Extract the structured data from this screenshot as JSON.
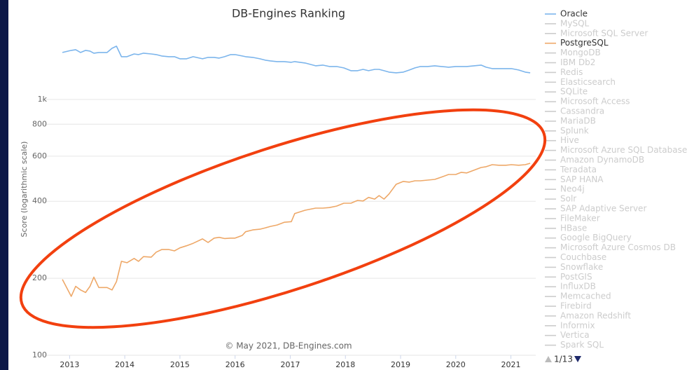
{
  "chart_data": {
    "type": "line",
    "title": "DB-Engines Ranking",
    "ylabel": "Score (logarithmic scale)",
    "credits": "© May 2021, DB-Engines.com",
    "ylog": true,
    "grid": true,
    "legend_position": "right",
    "legend_page": "1/13",
    "xlim": [
      2012.5,
      2021.45
    ],
    "xticks": [
      2013,
      2014,
      2015,
      2016,
      2017,
      2018,
      2019,
      2020,
      2021
    ],
    "ylim": [
      100,
      2000
    ],
    "yticks": [
      100,
      200,
      400,
      600,
      800,
      {
        "value": 1000,
        "label": "1k"
      }
    ],
    "x": [
      2012.87,
      2013.03,
      2013.11,
      2013.2,
      2013.29,
      2013.37,
      2013.44,
      2013.53,
      2013.68,
      2013.77,
      2013.85,
      2013.94,
      2014.04,
      2014.17,
      2014.25,
      2014.34,
      2014.48,
      2014.57,
      2014.67,
      2014.8,
      2014.9,
      2015.0,
      2015.12,
      2015.24,
      2015.41,
      2015.51,
      2015.62,
      2015.71,
      2015.81,
      2015.92,
      2016.0,
      2016.13,
      2016.19,
      2016.32,
      2016.45,
      2016.55,
      2016.64,
      2016.76,
      2016.89,
      2017.02,
      2017.08,
      2017.27,
      2017.46,
      2017.59,
      2017.71,
      2017.84,
      2017.97,
      2018.1,
      2018.22,
      2018.32,
      2018.42,
      2018.53,
      2018.61,
      2018.7,
      2018.79,
      2018.92,
      2019.05,
      2019.16,
      2019.26,
      2019.36,
      2019.49,
      2019.62,
      2019.74,
      2019.87,
      2020.0,
      2020.1,
      2020.2,
      2020.33,
      2020.46,
      2020.55,
      2020.66,
      2020.78,
      2020.91,
      2021.01,
      2021.14,
      2021.26,
      2021.35
    ],
    "series": [
      {
        "name": "Oracle",
        "color": "#7cb5ec",
        "values": [
          1526,
          1555,
          1565,
          1526,
          1555,
          1545,
          1516,
          1526,
          1526,
          1585,
          1615,
          1469,
          1469,
          1506,
          1497,
          1516,
          1506,
          1497,
          1479,
          1469,
          1469,
          1442,
          1442,
          1469,
          1442,
          1460,
          1460,
          1451,
          1469,
          1497,
          1497,
          1479,
          1469,
          1460,
          1442,
          1424,
          1415,
          1406,
          1406,
          1397,
          1406,
          1388,
          1354,
          1362,
          1345,
          1345,
          1328,
          1295,
          1295,
          1311,
          1295,
          1311,
          1311,
          1295,
          1279,
          1271,
          1279,
          1303,
          1328,
          1345,
          1345,
          1354,
          1345,
          1337,
          1345,
          1345,
          1345,
          1354,
          1362,
          1337,
          1320,
          1320,
          1320,
          1320,
          1303,
          1279,
          1271
        ]
      },
      {
        "name": "PostgreSQL",
        "color": "#eea868",
        "values": [
          198,
          170,
          186,
          180,
          176,
          186,
          202,
          184,
          184,
          180,
          194,
          233,
          230,
          239,
          233,
          243,
          242,
          253,
          259,
          259,
          256,
          263,
          268,
          274,
          285,
          276,
          287,
          289,
          286,
          287,
          287,
          294,
          304,
          309,
          311,
          315,
          319,
          323,
          331,
          333,
          358,
          369,
          376,
          376,
          378,
          383,
          393,
          393,
          403,
          401,
          414,
          408,
          421,
          408,
          427,
          466,
          478,
          475,
          481,
          481,
          484,
          487,
          497,
          509,
          509,
          519,
          516,
          529,
          542,
          546,
          556,
          553,
          553,
          556,
          553,
          556,
          563
        ]
      }
    ],
    "legend_inactive": [
      "MySQL",
      "Microsoft SQL Server",
      "MongoDB",
      "IBM Db2",
      "Redis",
      "Elasticsearch",
      "SQLite",
      "Microsoft Access",
      "Cassandra",
      "MariaDB",
      "Splunk",
      "Hive",
      "Microsoft Azure SQL Database",
      "Amazon DynamoDB",
      "Teradata",
      "SAP HANA",
      "Neo4j",
      "Solr",
      "SAP Adaptive Server",
      "FileMaker",
      "HBase",
      "Google BigQuery",
      "Microsoft Azure Cosmos DB",
      "Couchbase",
      "Snowflake",
      "PostGIS",
      "InfluxDB",
      "Memcached",
      "Firebird",
      "Amazon Redshift",
      "Informix",
      "Vertica",
      "Spark SQL"
    ]
  }
}
